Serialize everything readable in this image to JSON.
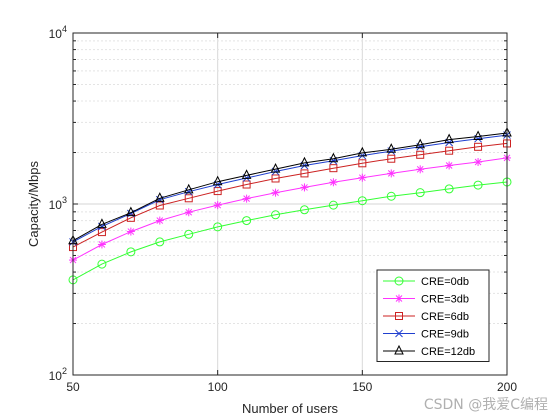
{
  "watermark": "CSDN @我爱C编程",
  "chart_data": {
    "type": "line",
    "xlabel": "Number of users",
    "ylabel": "Capacity/Mbps",
    "xlim": [
      50,
      200
    ],
    "ylim": [
      100,
      10000
    ],
    "yscale": "log",
    "grid": true,
    "legend_position": "bottom-right",
    "x_ticks": [
      "50",
      "100",
      "150",
      "200"
    ],
    "y_ticks": [
      {
        "value": 100,
        "base": "10",
        "exp": "2"
      },
      {
        "value": 1000,
        "base": "10",
        "exp": "3"
      },
      {
        "value": 10000,
        "base": "10",
        "exp": "4"
      }
    ],
    "x": [
      50,
      60,
      70,
      80,
      90,
      100,
      110,
      120,
      130,
      140,
      150,
      160,
      170,
      180,
      190,
      200
    ],
    "series": [
      {
        "name": "CRE=0db",
        "color": "#33ff33",
        "marker": "circle",
        "values": [
          360,
          445,
          525,
          600,
          665,
          735,
          800,
          865,
          925,
          985,
          1045,
          1110,
          1165,
          1225,
          1290,
          1345
        ]
      },
      {
        "name": "CRE=3db",
        "color": "#ff33ff",
        "marker": "star",
        "values": [
          470,
          580,
          690,
          800,
          895,
          985,
          1075,
          1165,
          1250,
          1340,
          1425,
          1510,
          1595,
          1680,
          1760,
          1860
        ]
      },
      {
        "name": "CRE=6db",
        "color": "#cc2222",
        "marker": "square",
        "values": [
          560,
          685,
          830,
          980,
          1080,
          1190,
          1300,
          1410,
          1510,
          1620,
          1730,
          1840,
          1940,
          2050,
          2160,
          2260
        ]
      },
      {
        "name": "CRE=9db",
        "color": "#1f3fcf",
        "marker": "x",
        "values": [
          600,
          740,
          880,
          1060,
          1180,
          1300,
          1420,
          1550,
          1680,
          1790,
          1920,
          2040,
          2160,
          2290,
          2410,
          2530
        ]
      },
      {
        "name": "CRE=12db",
        "color": "#000000",
        "marker": "triangle",
        "values": [
          610,
          760,
          890,
          1080,
          1210,
          1350,
          1470,
          1600,
          1740,
          1840,
          1990,
          2090,
          2220,
          2380,
          2480,
          2600
        ]
      }
    ]
  }
}
